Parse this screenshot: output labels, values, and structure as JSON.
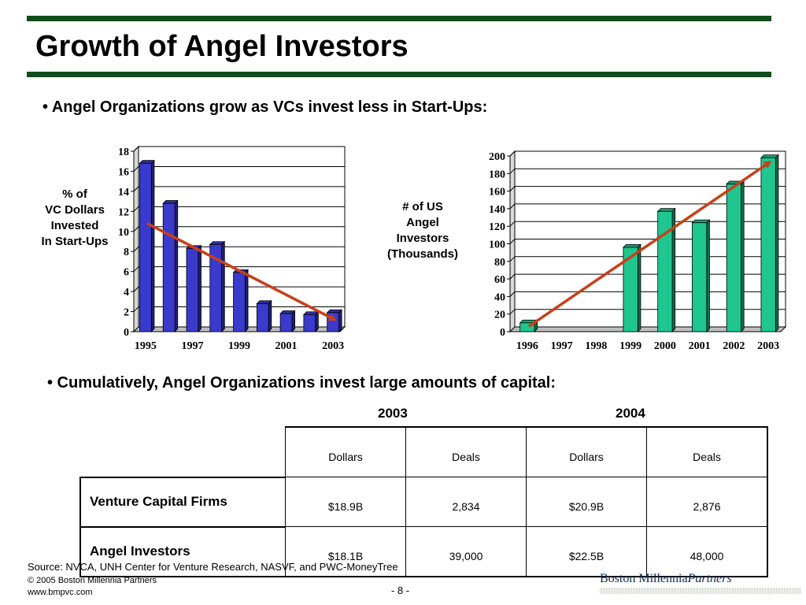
{
  "title": "Growth of Angel Investors",
  "bullets": [
    "• Angel Organizations grow as VCs invest less in Start-Ups:",
    "• Cumulatively, Angel Organizations invest large amounts of capital:"
  ],
  "colors": {
    "rule": "#0f4d1c",
    "left_bars": "#3a3acc",
    "right_bars": "#1fc68f",
    "trend": "#c8401a"
  },
  "chart_data": [
    {
      "type": "bar",
      "ylabel_lines": [
        "% of",
        "VC Dollars",
        "Invested",
        "In Start-Ups"
      ],
      "categories": [
        "1995",
        "1996",
        "1997",
        "1998",
        "1999",
        "2000",
        "2001",
        "2002",
        "2003"
      ],
      "x_tick_labels": [
        "1995",
        "1997",
        "1999",
        "2001",
        "2003"
      ],
      "values": [
        16.8,
        12.8,
        8.3,
        8.7,
        5.9,
        2.8,
        1.8,
        1.7,
        1.9
      ],
      "ylim": [
        0,
        18
      ],
      "yticks": [
        0,
        2,
        4,
        6,
        8,
        10,
        12,
        14,
        16,
        18
      ],
      "grid": true,
      "trend_arrow": {
        "from": 10.8,
        "to": 1.2,
        "direction": "down"
      }
    },
    {
      "type": "bar",
      "ylabel_lines": [
        "# of US",
        "Angel",
        "Investors",
        "(Thousands)"
      ],
      "categories": [
        "1996",
        "1997",
        "1998",
        "1999",
        "2000",
        "2001",
        "2002",
        "2003"
      ],
      "x_tick_labels": [
        "1996",
        "1997",
        "1998",
        "1999",
        "2000",
        "2001",
        "2002",
        "2003"
      ],
      "values": [
        10,
        0,
        0,
        96,
        137,
        124,
        168,
        198
      ],
      "ylim": [
        0,
        200
      ],
      "yticks": [
        0,
        20,
        40,
        60,
        80,
        100,
        120,
        140,
        160,
        180,
        200
      ],
      "grid": true,
      "trend_arrow": {
        "from": 6,
        "to": 193,
        "direction": "up"
      }
    }
  ],
  "table": {
    "years": [
      "2003",
      "2004"
    ],
    "columns": [
      "Dollars",
      "Deals",
      "Dollars",
      "Deals"
    ],
    "rows": [
      {
        "label": "Venture Capital Firms",
        "values": [
          "$18.9B",
          "2,834",
          "$20.9B",
          "2,876"
        ]
      },
      {
        "label": "Angel Investors",
        "values": [
          "$18.1B",
          "39,000",
          "$22.5B",
          "48,000"
        ]
      }
    ]
  },
  "footer": {
    "source": "Source: NVCA, UNH Center for Venture Research, NASVF, and PWC-MoneyTree",
    "copyright": "© 2005 Boston Millennia Partners",
    "website": "www.bmpvc.com",
    "page_number": "- 8 -",
    "logo_main": "Boston Millennia",
    "logo_italic": "Partners"
  }
}
